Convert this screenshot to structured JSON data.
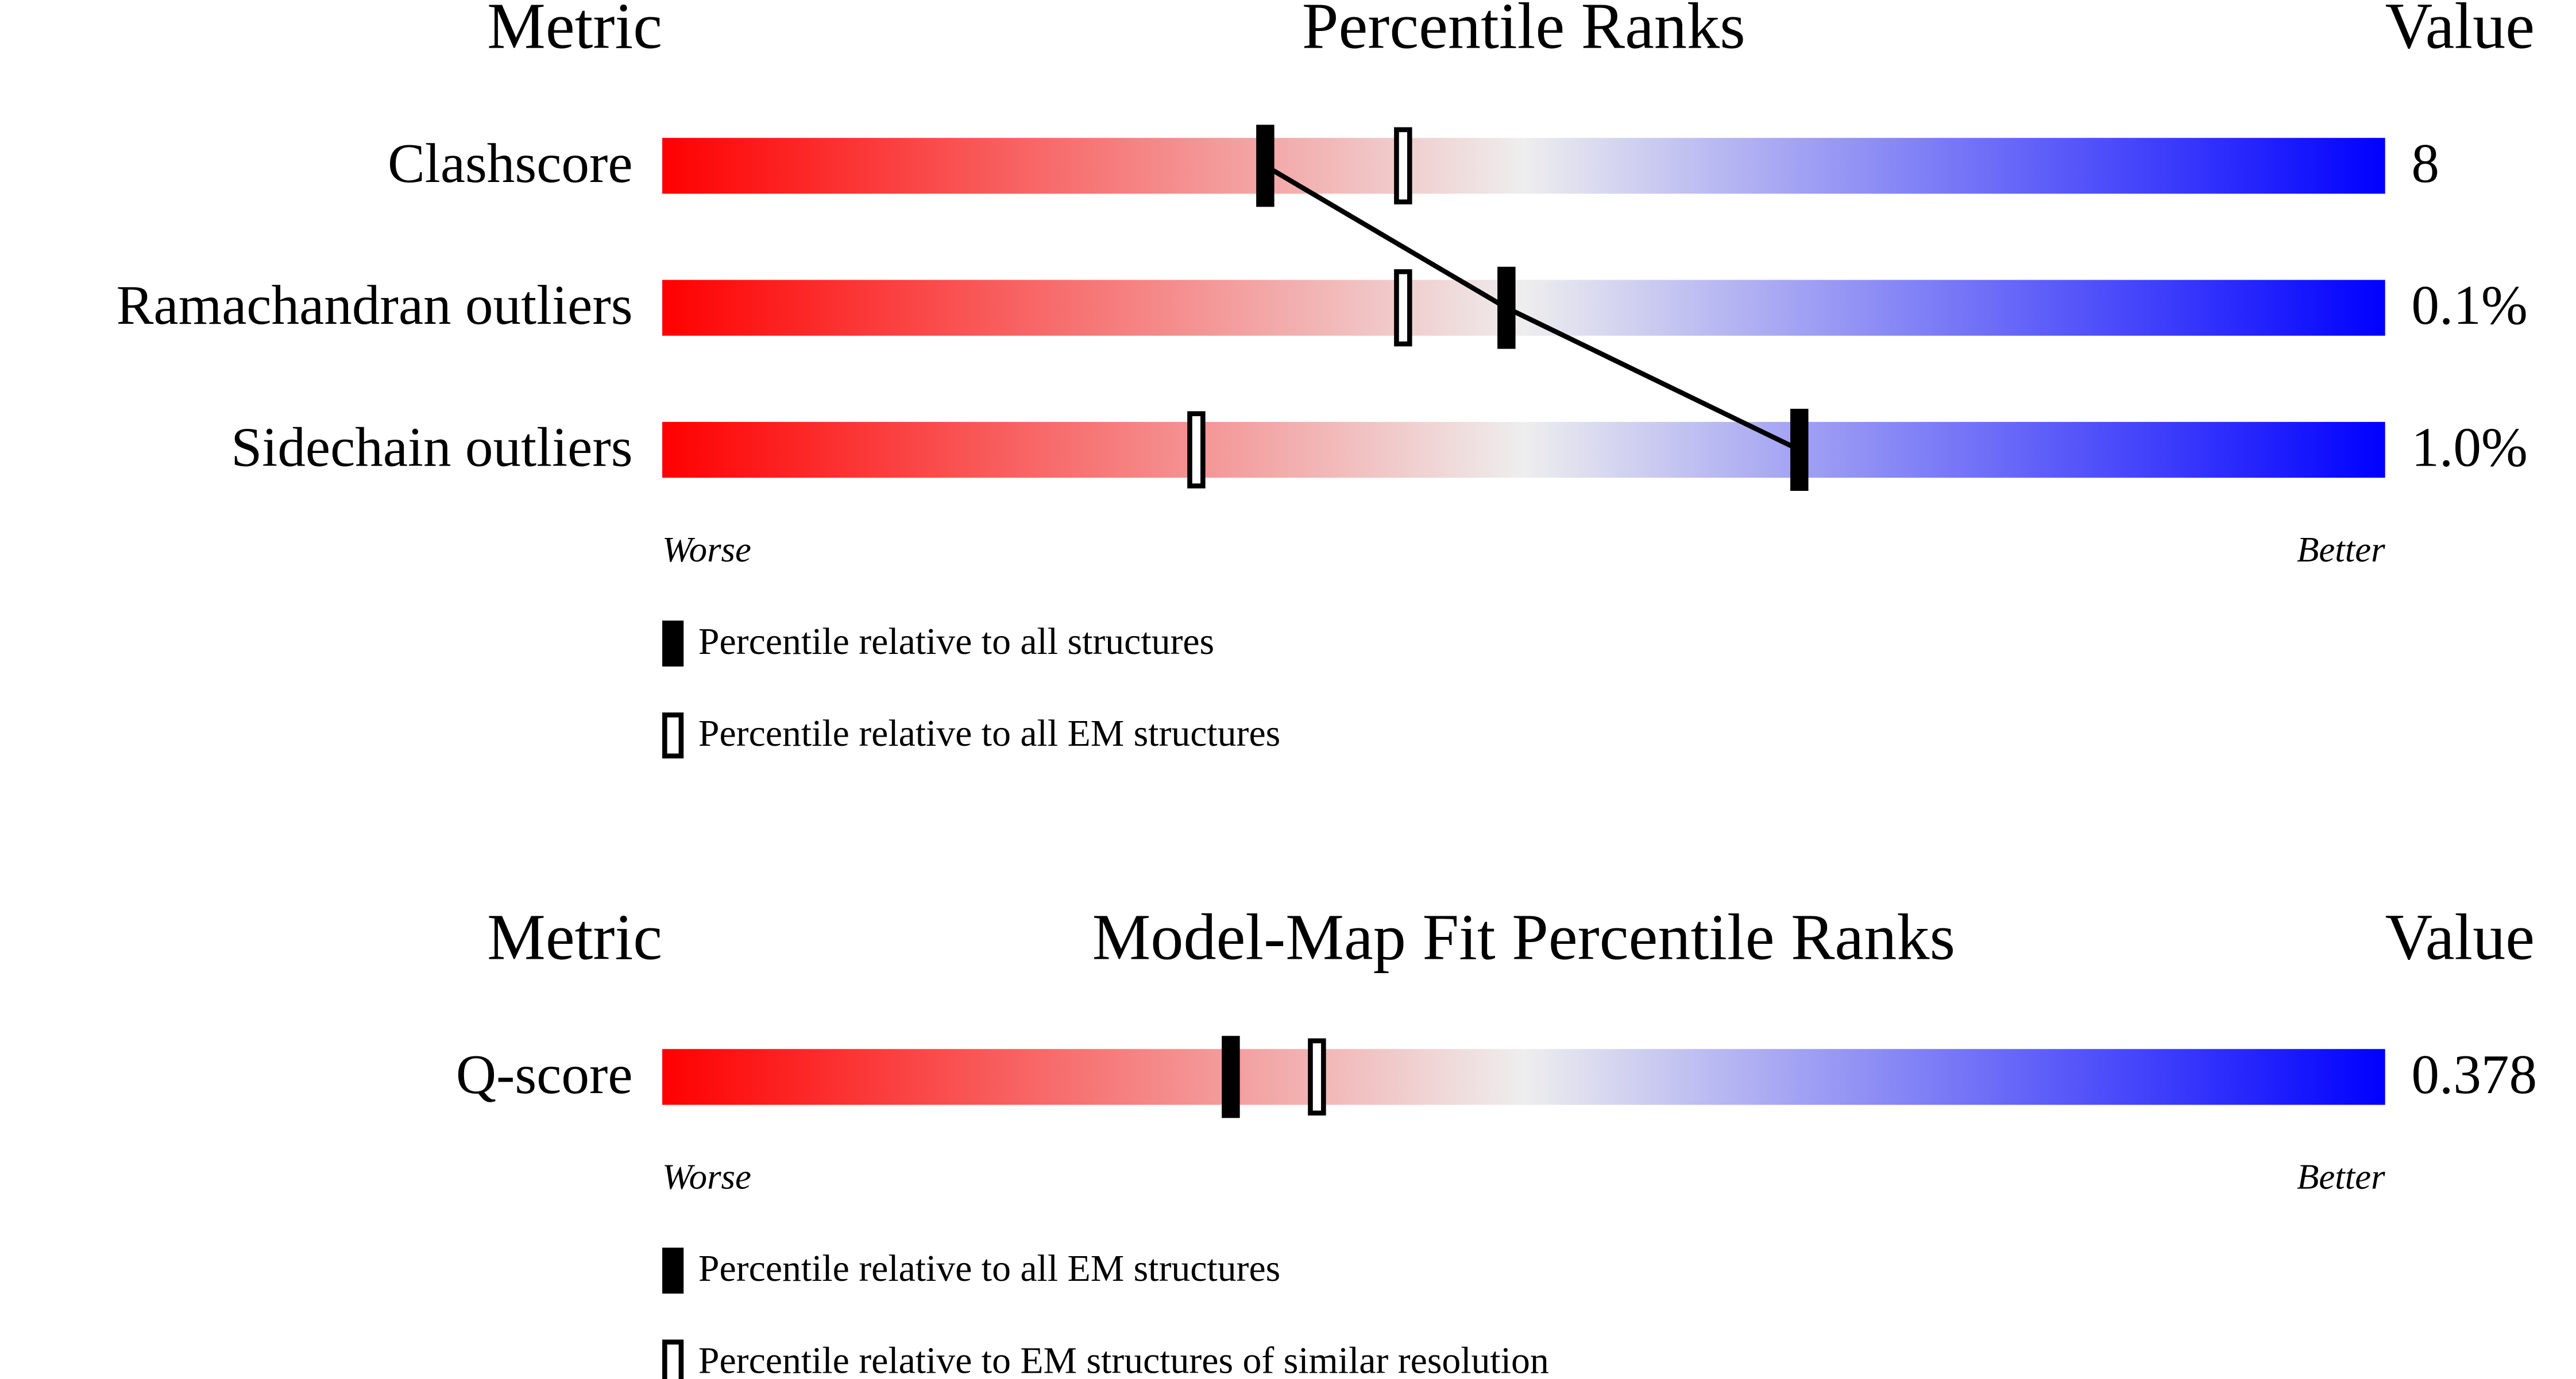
{
  "chart_data": [
    {
      "type": "percentile",
      "headers": {
        "metric": "Metric",
        "title": "Percentile Ranks",
        "value": "Value"
      },
      "categories": [
        "Clashscore",
        "Ramachandran outliers",
        "Sidechain outliers"
      ],
      "metric_values": [
        "8",
        "0.1%",
        "1.0%"
      ],
      "xlim": [
        0,
        100
      ],
      "gradient": [
        "#ff0000",
        "#eeeeee",
        "#0000ff"
      ],
      "scale_labels": {
        "worse": "Worse",
        "better": "Better"
      },
      "connect_filled": true,
      "series": [
        {
          "name": "Percentile relative to all structures",
          "style": "filled",
          "color": "#000000",
          "values": [
            35,
            49,
            66
          ]
        },
        {
          "name": "Percentile relative to all EM structures",
          "style": "open",
          "color": "#000000",
          "values": [
            43,
            43,
            31
          ]
        }
      ]
    },
    {
      "type": "percentile",
      "headers": {
        "metric": "Metric",
        "title": "Model-Map Fit Percentile Ranks",
        "value": "Value"
      },
      "categories": [
        "Q-score"
      ],
      "metric_values": [
        "0.378"
      ],
      "xlim": [
        0,
        100
      ],
      "gradient": [
        "#ff0000",
        "#eeeeee",
        "#0000ff"
      ],
      "scale_labels": {
        "worse": "Worse",
        "better": "Better"
      },
      "connect_filled": false,
      "series": [
        {
          "name": "Percentile relative to all EM structures",
          "style": "filled",
          "color": "#000000",
          "values": [
            33
          ]
        },
        {
          "name": "Percentile relative to EM structures of similar resolution",
          "style": "open",
          "color": "#000000",
          "values": [
            38
          ]
        }
      ]
    }
  ]
}
